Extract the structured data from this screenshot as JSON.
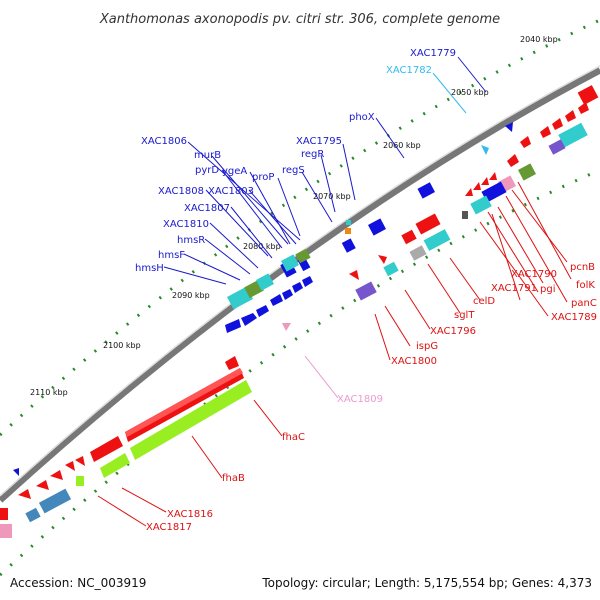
{
  "title": "Xanthomonas axonopodis pv. citri str. 306, complete genome",
  "footer": {
    "accession": "Accession: NC_003919",
    "summary": "Topology: circular; Length: 5,175,554 bp; Genes: 4,373"
  },
  "kbp_ticks": [
    "2040 kbp",
    "2050 kbp",
    "2060 kbp",
    "2070 kbp",
    "2080 kbp",
    "2090 kbp",
    "2100 kbp",
    "2110 kbp"
  ],
  "gene_labels": [
    {
      "name": "XAC1779",
      "color": "#1a1acc"
    },
    {
      "name": "XAC1782",
      "color": "#33bbee"
    },
    {
      "name": "phoX",
      "color": "#1a1acc"
    },
    {
      "name": "XAC1795",
      "color": "#1a1acc"
    },
    {
      "name": "regR",
      "color": "#1a1acc"
    },
    {
      "name": "regS",
      "color": "#1a1acc"
    },
    {
      "name": "XAC1806",
      "color": "#1a1acc"
    },
    {
      "name": "murB",
      "color": "#1a1acc"
    },
    {
      "name": "pyrD",
      "color": "#1a1acc"
    },
    {
      "name": "ygeA",
      "color": "#1a1acc"
    },
    {
      "name": "proP",
      "color": "#1a1acc"
    },
    {
      "name": "XAC1808",
      "color": "#1a1acc"
    },
    {
      "name": "XAC1803",
      "color": "#1a1acc"
    },
    {
      "name": "XAC1807",
      "color": "#1a1acc"
    },
    {
      "name": "XAC1810",
      "color": "#1a1acc"
    },
    {
      "name": "hmsR",
      "color": "#1a1acc"
    },
    {
      "name": "hmsF",
      "color": "#1a1acc"
    },
    {
      "name": "hmsH",
      "color": "#1a1acc"
    },
    {
      "name": "pcnB",
      "color": "#dd1111"
    },
    {
      "name": "folK",
      "color": "#dd1111"
    },
    {
      "name": "XAC1790",
      "color": "#dd1111"
    },
    {
      "name": "XAC1791",
      "color": "#dd1111"
    },
    {
      "name": "pgi",
      "color": "#dd1111"
    },
    {
      "name": "panC",
      "color": "#dd1111"
    },
    {
      "name": "XAC1789",
      "color": "#dd1111"
    },
    {
      "name": "celD",
      "color": "#dd1111"
    },
    {
      "name": "sglT",
      "color": "#dd1111"
    },
    {
      "name": "XAC1796",
      "color": "#dd1111"
    },
    {
      "name": "ispG",
      "color": "#dd1111"
    },
    {
      "name": "XAC1800",
      "color": "#dd1111"
    },
    {
      "name": "XAC1809",
      "color": "#ee99cc"
    },
    {
      "name": "fhaC",
      "color": "#dd1111"
    },
    {
      "name": "fhaB",
      "color": "#dd1111"
    },
    {
      "name": "XAC1816",
      "color": "#dd1111"
    },
    {
      "name": "XAC1817",
      "color": "#dd1111"
    }
  ],
  "feature_colors": {
    "forward": "#1111dd",
    "reverse": "#ee1111",
    "cyan": "#33cccc",
    "lime": "#99ee22",
    "steel": "#4488bb",
    "olive": "#669933",
    "grey": "#aaaaaa",
    "pink": "#ee99bb",
    "purple": "#7755cc",
    "backbone": "#777777"
  }
}
